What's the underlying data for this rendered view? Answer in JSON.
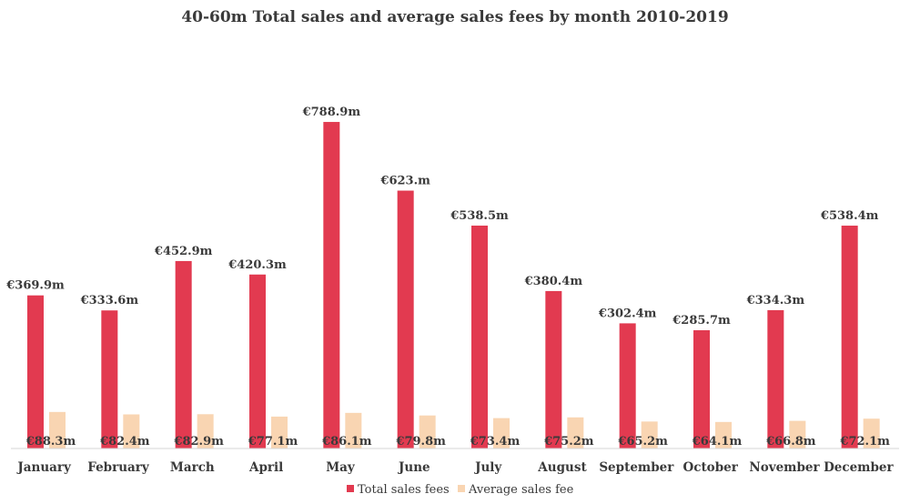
{
  "chart_data": {
    "type": "bar",
    "title": "40-60m Total sales and average sales fees by month 2010-2019",
    "xlabel": "",
    "ylabel": "",
    "ylim": [
      0,
      850
    ],
    "grid": false,
    "legend_position": "bottom-center",
    "categories": [
      "January",
      "February",
      "March",
      "April",
      "May",
      "June",
      "July",
      "August",
      "September",
      "October",
      "November",
      "December"
    ],
    "series": [
      {
        "name": "Total sales fees",
        "color": "#e23a50",
        "values": [
          369.9,
          333.6,
          452.9,
          420.3,
          788.9,
          623,
          538.5,
          380.4,
          302.4,
          285.7,
          334.3,
          538.4
        ],
        "labels": [
          "€369.9m",
          "€333.6m",
          "€452.9m",
          "€420.3m",
          "€788.9m",
          "€623.m",
          "€538.5m",
          "€380.4m",
          "€302.4m",
          "€285.7m",
          "€334.3m",
          "€538.4m"
        ]
      },
      {
        "name": "Average sales fee",
        "color": "#f9d5b2",
        "values": [
          88.3,
          82.4,
          82.9,
          77.1,
          86.1,
          79.8,
          73.4,
          75.2,
          65.2,
          64.1,
          66.8,
          72.1
        ],
        "labels": [
          "€88.3m",
          "€82.4m",
          "€82.9m",
          "€77.1m",
          "€86.1m",
          "€79.8m",
          "€73.4m",
          "€75.2m",
          "€65.2m",
          "€64.1m",
          "€66.8m",
          "€72.1m"
        ]
      }
    ]
  }
}
